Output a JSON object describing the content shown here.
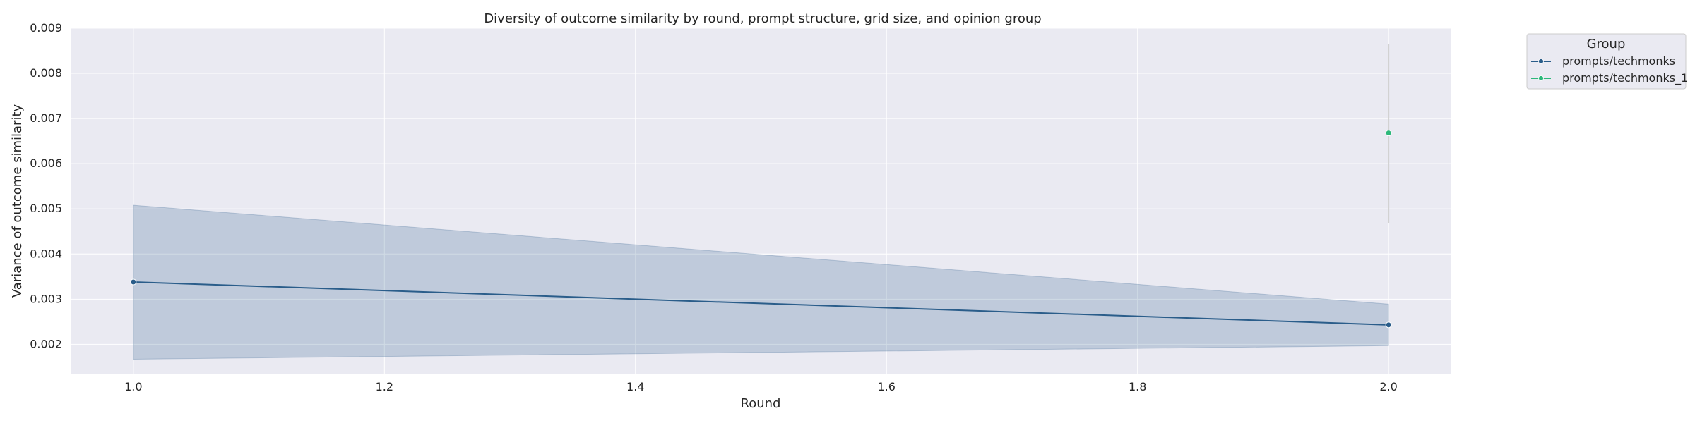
{
  "chart_data": {
    "type": "line",
    "title": "Diversity of outcome similarity by round, prompt structure, grid size, and opinion group",
    "xlabel": "Round",
    "ylabel": "Variance of outcome similarity",
    "xlim": [
      0.95,
      2.05
    ],
    "ylim": [
      0.00135,
      0.009
    ],
    "xticks": [
      1.0,
      1.2,
      1.4,
      1.6,
      1.8,
      2.0
    ],
    "xtick_labels": [
      "1.0",
      "1.2",
      "1.4",
      "1.6",
      "1.8",
      "2.0"
    ],
    "yticks": [
      0.002,
      0.003,
      0.004,
      0.005,
      0.006,
      0.007,
      0.008,
      0.009
    ],
    "ytick_labels": [
      "0.002",
      "0.003",
      "0.004",
      "0.005",
      "0.006",
      "0.007",
      "0.008",
      "0.009"
    ],
    "grid": true,
    "legend": {
      "title": "Group",
      "placement": "outside-top-right"
    },
    "series": [
      {
        "name": "prompts/techmonks",
        "color": "#2a5d8a",
        "x": [
          1.0,
          2.0
        ],
        "y": [
          0.00338,
          0.00243
        ],
        "ci_low": [
          0.00167,
          0.00197
        ],
        "ci_high": [
          0.00508,
          0.00289
        ]
      },
      {
        "name": "prompts/techmonks_1",
        "color": "#2db87a",
        "x": [
          2.0
        ],
        "y": [
          0.00668
        ],
        "ci_low": [
          0.00468
        ],
        "ci_high": [
          0.00865
        ]
      }
    ]
  }
}
